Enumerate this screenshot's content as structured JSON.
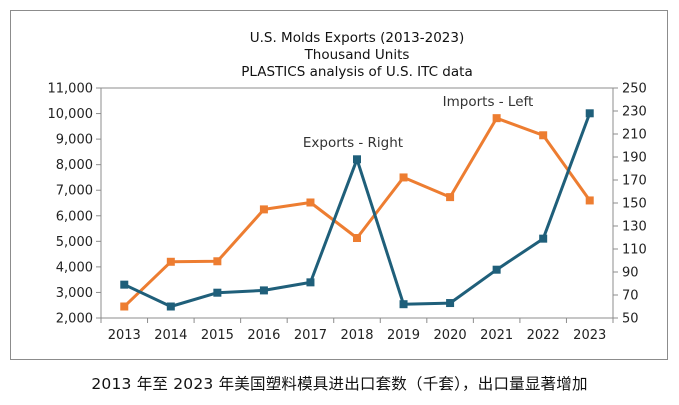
{
  "chart_data": {
    "type": "line",
    "title": [
      "U.S. Molds Exports (2013-2023)",
      "Thousand Units",
      "PLASTICS analysis  of U.S. ITC data"
    ],
    "categories": [
      "2013",
      "2014",
      "2015",
      "2016",
      "2017",
      "2018",
      "2019",
      "2020",
      "2021",
      "2022",
      "2023"
    ],
    "y_left": {
      "min": 2000,
      "max": 11000,
      "step": 1000,
      "ticks": [
        "2,000",
        "3,000",
        "4,000",
        "5,000",
        "6,000",
        "7,000",
        "8,000",
        "9,000",
        "10,000",
        "11,000"
      ]
    },
    "y_right": {
      "min": 50,
      "max": 250,
      "step": 20,
      "ticks": [
        "50",
        "70",
        "90",
        "110",
        "130",
        "150",
        "170",
        "190",
        "210",
        "230",
        "250"
      ]
    },
    "series": [
      {
        "name": "Imports - Left",
        "axis": "left",
        "color": "#ed7d31",
        "values": [
          2450,
          4200,
          4220,
          6250,
          6520,
          5130,
          7500,
          6730,
          9820,
          9150,
          6600
        ]
      },
      {
        "name": "Exports - Right",
        "axis": "right",
        "color": "#1f5f7a",
        "values": [
          79,
          60,
          72,
          74,
          81,
          188,
          62,
          63,
          92,
          119,
          228
        ]
      }
    ],
    "annotations": [
      "Imports - Left",
      "Exports - Right"
    ]
  },
  "caption": "2013 年至 2023 年美国塑料模具进出口套数（千套），出口量显著增加"
}
